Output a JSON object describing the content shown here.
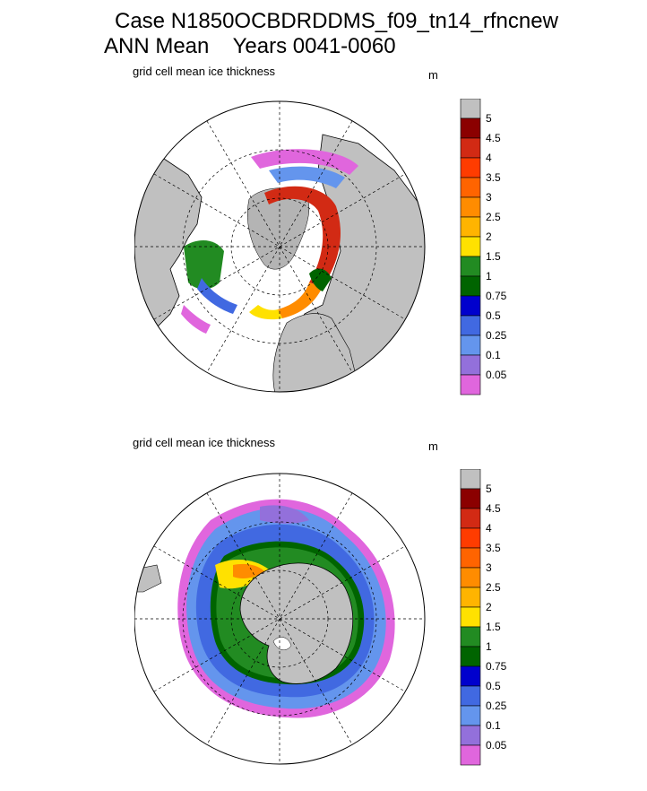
{
  "title": {
    "line1": "Case N1850OCBDRDDMS_f09_tn14_rfncnew",
    "line2": "ANN Mean    Years 0041-0060"
  },
  "maps": {
    "north": {
      "subtitle": "grid cell mean ice thickness",
      "units": "m"
    },
    "south": {
      "subtitle": "grid cell mean ice thickness",
      "units": "m"
    }
  },
  "colorbar": {
    "levels": [
      "5",
      "4.5",
      "4",
      "3.5",
      "3",
      "2.5",
      "2",
      "1.5",
      "1",
      "0.75",
      "0.5",
      "0.25",
      "0.1",
      "0.05"
    ],
    "colors": [
      "#c0c0c0",
      "#8b0000",
      "#d22a14",
      "#ff3c00",
      "#ff6400",
      "#ff8c00",
      "#ffb400",
      "#ffe100",
      "#228b22",
      "#006400",
      "#0000cd",
      "#4169e1",
      "#6495ed",
      "#9370db",
      "#e066dd"
    ]
  },
  "colors": {
    "land": "#c0c0c0",
    "ocean": "#ffffff",
    "coast": "#000000"
  }
}
